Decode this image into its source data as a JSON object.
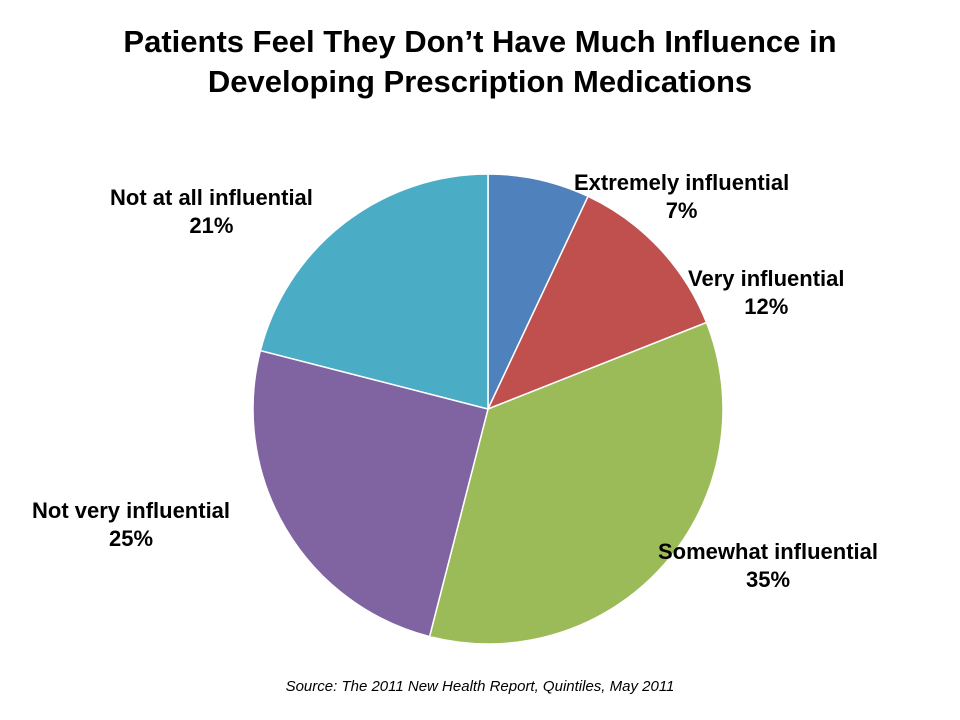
{
  "chart_data": {
    "type": "pie",
    "title": [
      "Patients Feel They Don’t Have Much Influence in",
      "Developing Prescription Medications"
    ],
    "categories": [
      "Extremely influential",
      "Very influential",
      "Somewhat influential",
      "Not very influential",
      "Not at all influential"
    ],
    "values": [
      7,
      12,
      35,
      25,
      21
    ],
    "value_labels": [
      "7%",
      "12%",
      "35%",
      "25%",
      "21%"
    ],
    "colors": [
      "#4F81BD",
      "#C0504D",
      "#9BBB59",
      "#8064A2",
      "#4BACC6"
    ],
    "start": "top",
    "direction": "clockwise",
    "source": "Source: The 2011 New Health Report, Quintiles, May 2011"
  }
}
